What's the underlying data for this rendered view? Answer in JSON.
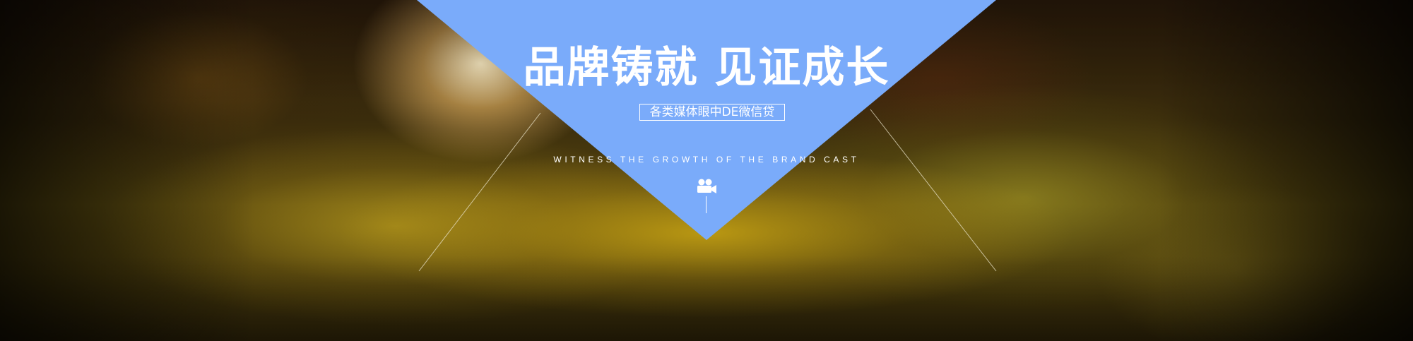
{
  "banner": {
    "title": "品牌铸就 见证成长",
    "subtitle": "各类媒体眼中DE微信贷",
    "tagline": "WITNESS THE GROWTH OF THE BRAND CAST"
  },
  "icons": {
    "camera": "movie-camera-icon"
  },
  "colors": {
    "triangle": "#7aabfa",
    "text": "#ffffff"
  }
}
